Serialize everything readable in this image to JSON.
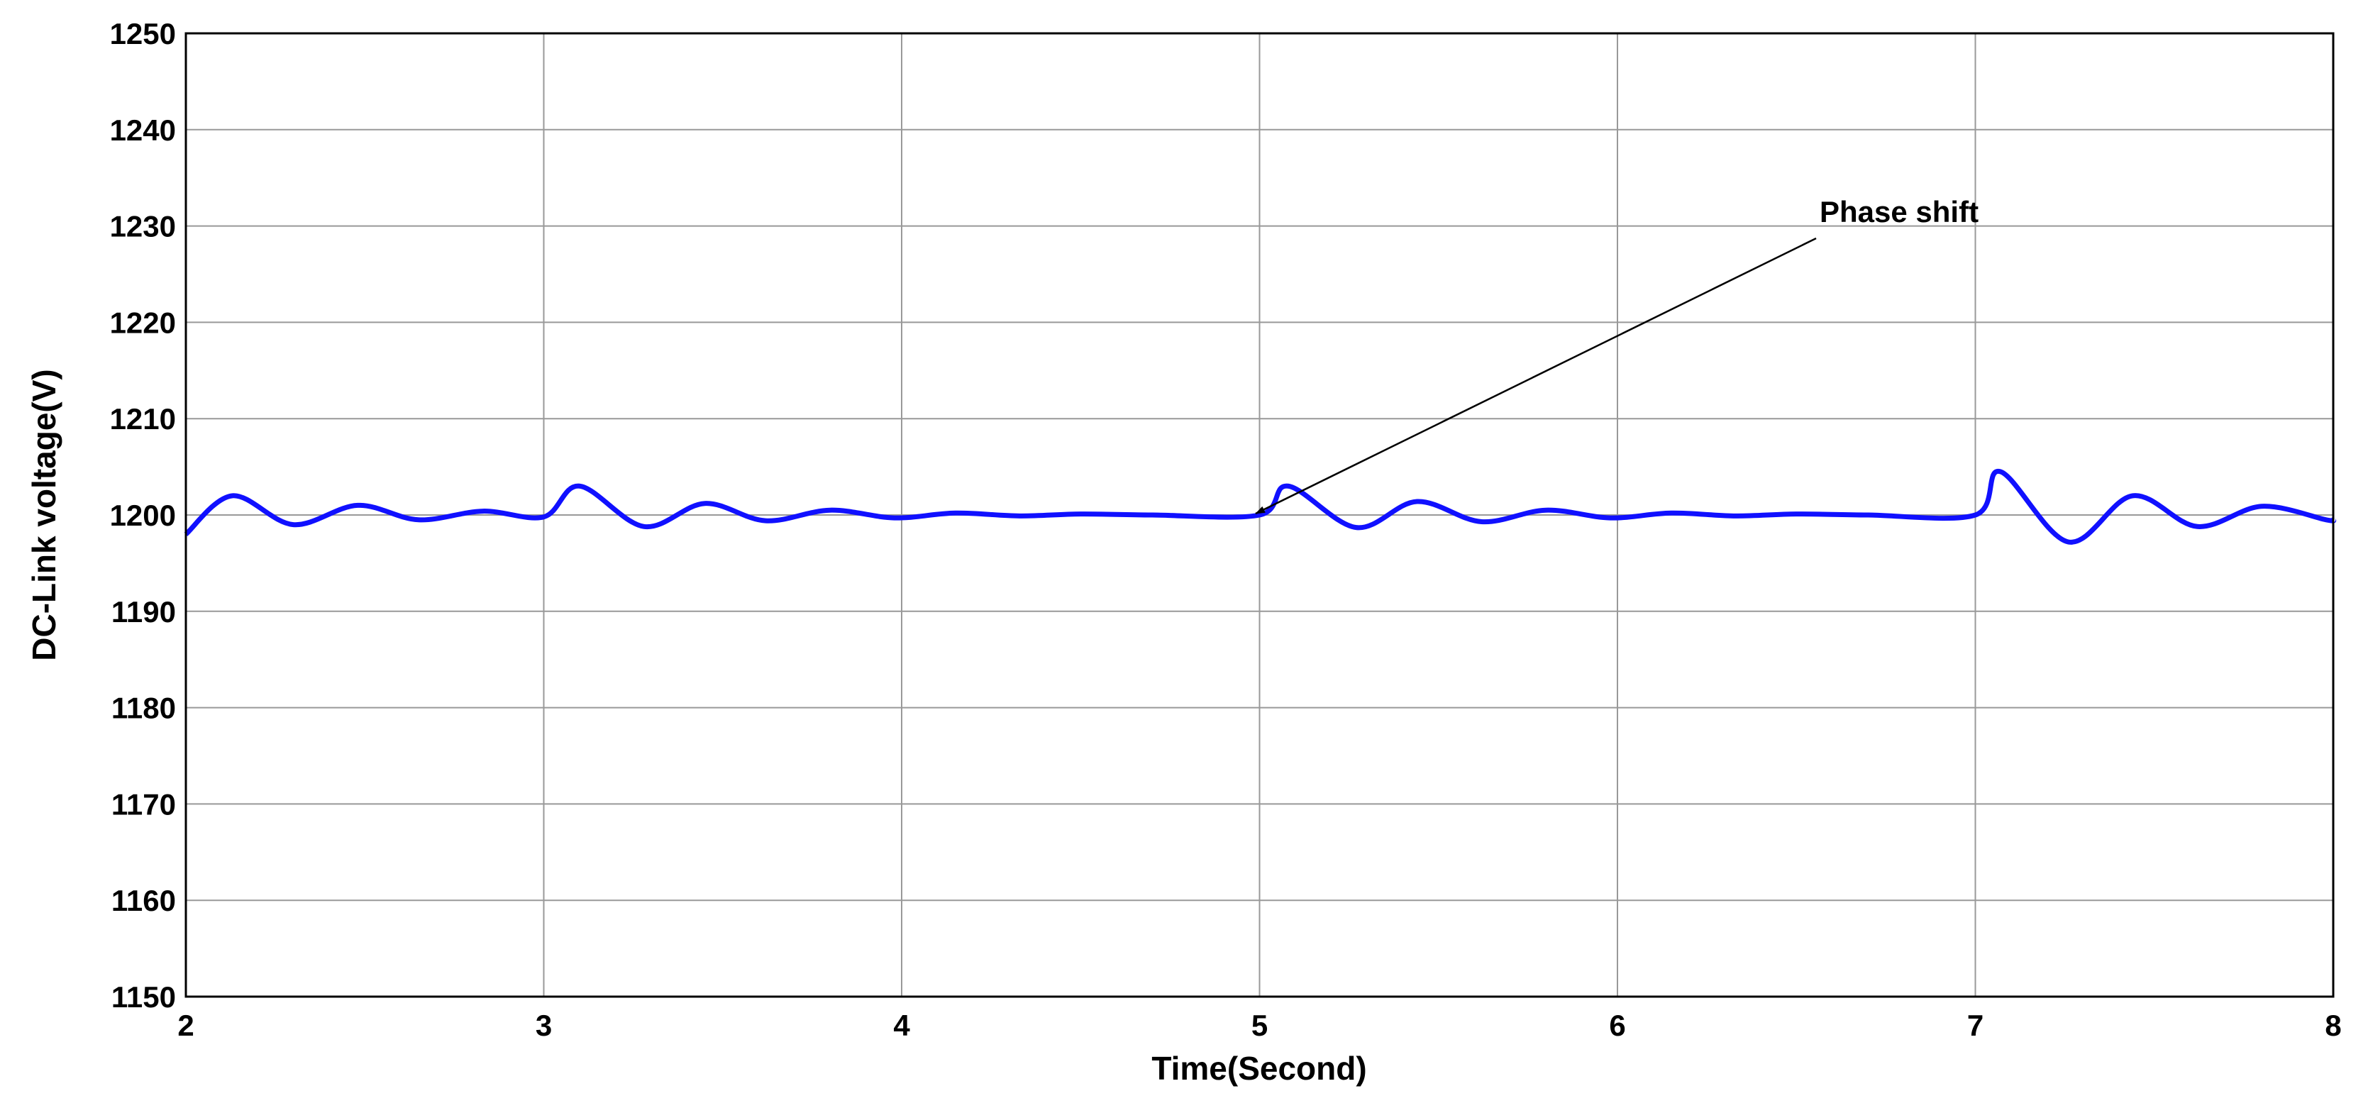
{
  "chart_data": {
    "type": "line",
    "x_label": "Time(Second)",
    "y_label": "DC-Link voltage(V)",
    "annotation": "Phase shift",
    "x": [
      2,
      2.13,
      2.3,
      2.48,
      2.65,
      2.83,
      3.0,
      3.1,
      3.28,
      3.45,
      3.62,
      3.8,
      3.98,
      4.15,
      4.33,
      4.5,
      4.7,
      5.0,
      5.08,
      5.27,
      5.44,
      5.62,
      5.8,
      5.98,
      6.15,
      6.33,
      6.5,
      6.7,
      7.0,
      7.07,
      7.26,
      7.44,
      7.62,
      7.8,
      7.98,
      8
    ],
    "values": [
      1198,
      1202,
      1199,
      1201,
      1199.5,
      1200.4,
      1199.8,
      1203,
      1198.8,
      1201.2,
      1199.4,
      1200.5,
      1199.7,
      1200.2,
      1199.9,
      1200.1,
      1200,
      1200,
      1203,
      1198.7,
      1201.4,
      1199.3,
      1200.5,
      1199.7,
      1200.2,
      1199.9,
      1200.1,
      1200,
      1200,
      1204.5,
      1197.2,
      1202,
      1198.8,
      1200.9,
      1199.5,
      1199.5
    ],
    "color": "#1010ff",
    "xlim": [
      2,
      8
    ],
    "xticks": [
      2,
      3,
      4,
      5,
      6,
      7,
      8
    ],
    "ylim": [
      1150,
      1250
    ],
    "yticks": [
      1150,
      1160,
      1170,
      1180,
      1190,
      1200,
      1210,
      1220,
      1230,
      1240,
      1250
    ],
    "grid": true
  }
}
